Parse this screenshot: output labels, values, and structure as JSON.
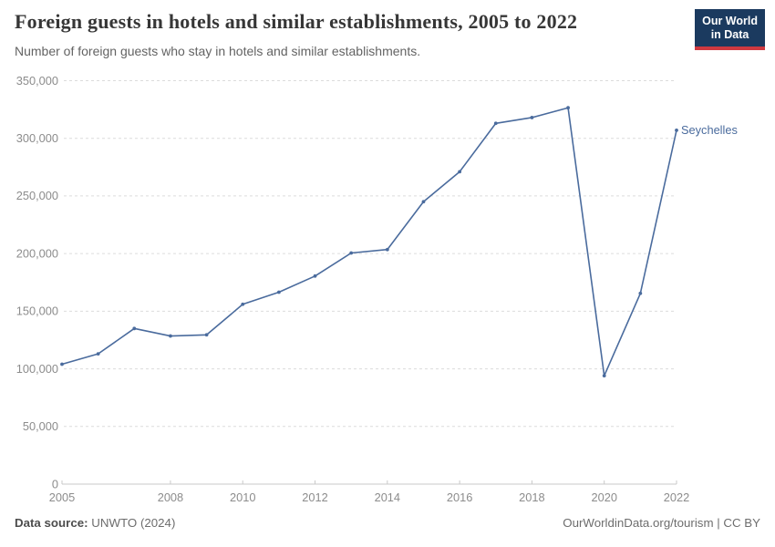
{
  "chart_data": {
    "type": "line",
    "title": "Foreign guests in hotels and similar establishments, 2005 to 2022",
    "subtitle": "Number of foreign guests who stay in hotels and similar establishments.",
    "x": [
      2005,
      2006,
      2007,
      2008,
      2009,
      2010,
      2011,
      2012,
      2013,
      2014,
      2015,
      2016,
      2017,
      2018,
      2019,
      2020,
      2021,
      2022
    ],
    "series": [
      {
        "name": "Seychelles",
        "color": "#4a6b9d",
        "values": [
          104000,
          113000,
          135000,
          128500,
          129500,
          156000,
          166500,
          180500,
          200500,
          203500,
          245000,
          271000,
          313000,
          318000,
          326500,
          94000,
          165500,
          307000
        ]
      }
    ],
    "x_ticks": [
      2005,
      2008,
      2010,
      2012,
      2014,
      2016,
      2018,
      2020,
      2022
    ],
    "y_ticks": [
      0,
      50000,
      100000,
      150000,
      200000,
      250000,
      300000,
      350000
    ],
    "xlim": [
      2005,
      2022
    ],
    "ylim": [
      0,
      350000
    ],
    "xlabel": "",
    "ylabel": "",
    "grid": "horizontal-dashed",
    "legend": "end-of-line-label"
  },
  "logo": {
    "line1": "Our World",
    "line2": "in Data",
    "bg": "#1b3a5f",
    "accent": "#cf3940"
  },
  "footer": {
    "datasource_label": "Data source:",
    "datasource_value": "UNWTO (2024)",
    "credit": "OurWorldinData.org/tourism | CC BY"
  }
}
